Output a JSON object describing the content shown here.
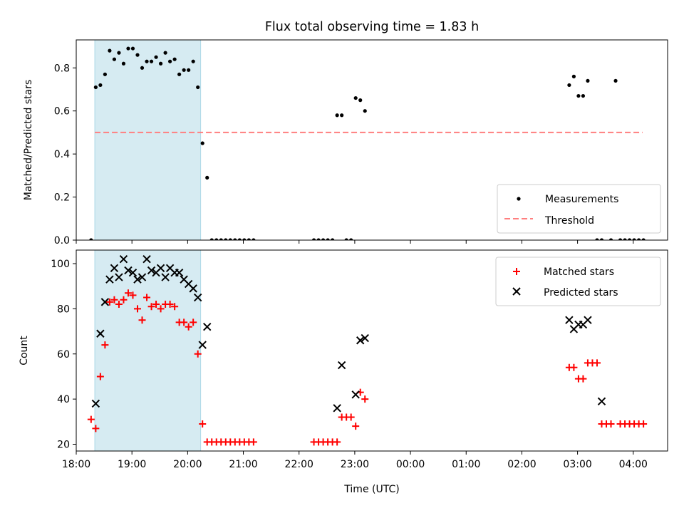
{
  "title": "Flux total observing time = 1.83 h",
  "xlabel": "Time (UTC)",
  "colors": {
    "shade": "#add8e6",
    "threshold": "#ff7f7f",
    "matched": "#ff0000",
    "predicted": "#000000",
    "measurement": "#000000"
  },
  "chart_data": [
    {
      "type": "scatter",
      "ylabel": "Matched/Predicted stars",
      "xlim": [
        "18:00",
        "04:37"
      ],
      "ylim": [
        0,
        0.93
      ],
      "yticks": [
        "0.0",
        "0.2",
        "0.4",
        "0.6",
        "0.8"
      ],
      "shaded_interval": [
        "18:20",
        "20:14"
      ],
      "legend_position": "lower right",
      "threshold": {
        "name": "Threshold",
        "value": 0.5,
        "x_range": [
          "18:20",
          "04:10"
        ]
      },
      "series": [
        {
          "name": "Measurements",
          "points": [
            [
              "18:16",
              0.0
            ],
            [
              "18:21",
              0.71
            ],
            [
              "18:26",
              0.72
            ],
            [
              "18:31",
              0.77
            ],
            [
              "18:36",
              0.88
            ],
            [
              "18:41",
              0.84
            ],
            [
              "18:46",
              0.87
            ],
            [
              "18:51",
              0.82
            ],
            [
              "18:56",
              0.89
            ],
            [
              "19:01",
              0.89
            ],
            [
              "19:06",
              0.86
            ],
            [
              "19:11",
              0.8
            ],
            [
              "19:16",
              0.83
            ],
            [
              "19:21",
              0.83
            ],
            [
              "19:26",
              0.85
            ],
            [
              "19:31",
              0.82
            ],
            [
              "19:36",
              0.87
            ],
            [
              "19:41",
              0.83
            ],
            [
              "19:46",
              0.84
            ],
            [
              "19:51",
              0.77
            ],
            [
              "19:56",
              0.79
            ],
            [
              "20:01",
              0.79
            ],
            [
              "20:06",
              0.83
            ],
            [
              "20:11",
              0.71
            ],
            [
              "20:16",
              0.45
            ],
            [
              "20:21",
              0.29
            ],
            [
              "20:26",
              0.0
            ],
            [
              "20:31",
              0.0
            ],
            [
              "20:36",
              0.0
            ],
            [
              "20:41",
              0.0
            ],
            [
              "20:46",
              0.0
            ],
            [
              "20:51",
              0.0
            ],
            [
              "20:56",
              0.0
            ],
            [
              "21:01",
              0.0
            ],
            [
              "21:06",
              0.0
            ],
            [
              "21:11",
              0.0
            ],
            [
              "22:16",
              0.0
            ],
            [
              "22:21",
              0.0
            ],
            [
              "22:26",
              0.0
            ],
            [
              "22:31",
              0.0
            ],
            [
              "22:36",
              0.0
            ],
            [
              "22:41",
              0.58
            ],
            [
              "22:46",
              0.58
            ],
            [
              "22:51",
              0.0
            ],
            [
              "22:56",
              0.0
            ],
            [
              "23:01",
              0.66
            ],
            [
              "23:06",
              0.65
            ],
            [
              "23:11",
              0.6
            ],
            [
              "02:51",
              0.72
            ],
            [
              "02:56",
              0.76
            ],
            [
              "03:01",
              0.67
            ],
            [
              "03:06",
              0.67
            ],
            [
              "03:11",
              0.74
            ],
            [
              "03:21",
              0.0
            ],
            [
              "03:26",
              0.0
            ],
            [
              "03:36",
              0.0
            ],
            [
              "03:41",
              0.74
            ],
            [
              "03:46",
              0.0
            ],
            [
              "03:51",
              0.0
            ],
            [
              "03:56",
              0.0
            ],
            [
              "04:01",
              0.0
            ],
            [
              "04:06",
              0.0
            ],
            [
              "04:11",
              0.0
            ]
          ]
        }
      ]
    },
    {
      "type": "scatter",
      "ylabel": "Count",
      "xlim": [
        "18:00",
        "04:37"
      ],
      "ylim": [
        17,
        106
      ],
      "yticks": [
        "20",
        "40",
        "60",
        "80",
        "100"
      ],
      "xticks": [
        "18:00",
        "19:00",
        "20:00",
        "21:00",
        "22:00",
        "23:00",
        "00:00",
        "01:00",
        "02:00",
        "03:00",
        "04:00"
      ],
      "shaded_interval": [
        "18:20",
        "20:14"
      ],
      "legend_position": "upper right",
      "series": [
        {
          "name": "Matched stars",
          "marker": "plus",
          "points": [
            [
              "18:16",
              31
            ],
            [
              "18:21",
              27
            ],
            [
              "18:26",
              50
            ],
            [
              "18:31",
              64
            ],
            [
              "18:36",
              83
            ],
            [
              "18:41",
              84
            ],
            [
              "18:46",
              82
            ],
            [
              "18:51",
              84
            ],
            [
              "18:56",
              87
            ],
            [
              "19:01",
              86
            ],
            [
              "19:06",
              80
            ],
            [
              "19:11",
              75
            ],
            [
              "19:16",
              85
            ],
            [
              "19:21",
              81
            ],
            [
              "19:26",
              82
            ],
            [
              "19:31",
              80
            ],
            [
              "19:36",
              82
            ],
            [
              "19:41",
              82
            ],
            [
              "19:46",
              81
            ],
            [
              "19:51",
              74
            ],
            [
              "19:56",
              74
            ],
            [
              "20:01",
              72
            ],
            [
              "20:06",
              74
            ],
            [
              "20:11",
              60
            ],
            [
              "20:16",
              29
            ],
            [
              "20:21",
              21
            ],
            [
              "20:26",
              21
            ],
            [
              "20:31",
              21
            ],
            [
              "20:36",
              21
            ],
            [
              "20:41",
              21
            ],
            [
              "20:46",
              21
            ],
            [
              "20:51",
              21
            ],
            [
              "20:56",
              21
            ],
            [
              "21:01",
              21
            ],
            [
              "21:06",
              21
            ],
            [
              "21:11",
              21
            ],
            [
              "22:16",
              21
            ],
            [
              "22:21",
              21
            ],
            [
              "22:26",
              21
            ],
            [
              "22:31",
              21
            ],
            [
              "22:36",
              21
            ],
            [
              "22:41",
              21
            ],
            [
              "22:46",
              32
            ],
            [
              "22:51",
              32
            ],
            [
              "22:56",
              32
            ],
            [
              "23:01",
              28
            ],
            [
              "23:06",
              43
            ],
            [
              "23:11",
              40
            ],
            [
              "02:51",
              54
            ],
            [
              "02:56",
              54
            ],
            [
              "03:01",
              49
            ],
            [
              "03:06",
              49
            ],
            [
              "03:11",
              56
            ],
            [
              "03:16",
              56
            ],
            [
              "03:21",
              56
            ],
            [
              "03:26",
              29
            ],
            [
              "03:31",
              29
            ],
            [
              "03:36",
              29
            ],
            [
              "03:46",
              29
            ],
            [
              "03:51",
              29
            ],
            [
              "03:56",
              29
            ],
            [
              "04:01",
              29
            ],
            [
              "04:06",
              29
            ],
            [
              "04:11",
              29
            ]
          ]
        },
        {
          "name": "Predicted stars",
          "marker": "x",
          "points": [
            [
              "18:21",
              38
            ],
            [
              "18:26",
              69
            ],
            [
              "18:31",
              83
            ],
            [
              "18:36",
              93
            ],
            [
              "18:41",
              98
            ],
            [
              "18:46",
              94
            ],
            [
              "18:51",
              102
            ],
            [
              "18:56",
              97
            ],
            [
              "19:01",
              96
            ],
            [
              "19:06",
              93
            ],
            [
              "19:11",
              94
            ],
            [
              "19:16",
              102
            ],
            [
              "19:21",
              97
            ],
            [
              "19:26",
              96
            ],
            [
              "19:31",
              98
            ],
            [
              "19:36",
              94
            ],
            [
              "19:41",
              98
            ],
            [
              "19:46",
              96
            ],
            [
              "19:51",
              96
            ],
            [
              "19:56",
              93
            ],
            [
              "20:01",
              91
            ],
            [
              "20:06",
              89
            ],
            [
              "20:11",
              85
            ],
            [
              "20:16",
              64
            ],
            [
              "20:21",
              72
            ],
            [
              "22:41",
              36
            ],
            [
              "22:46",
              55
            ],
            [
              "23:01",
              42
            ],
            [
              "23:06",
              66
            ],
            [
              "23:11",
              67
            ],
            [
              "02:51",
              75
            ],
            [
              "02:56",
              71
            ],
            [
              "03:01",
              73
            ],
            [
              "03:06",
              73
            ],
            [
              "03:11",
              75
            ],
            [
              "03:26",
              39
            ]
          ]
        }
      ]
    }
  ]
}
